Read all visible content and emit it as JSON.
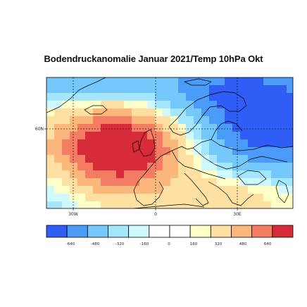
{
  "title": "Bodendruckanomalie Januar 2021/Temp 10hPa Okt",
  "map": {
    "lon_labels": [
      "30W",
      "0",
      "30E"
    ],
    "lat_labels": [
      "60N"
    ]
  },
  "colorbar": {
    "levels": [
      "-640",
      "-480",
      "-320",
      "-160",
      "0",
      "160",
      "320",
      "480",
      "640"
    ],
    "colors": [
      "#2f5df5",
      "#4a9cf8",
      "#74c8fb",
      "#a4e6fb",
      "#d0f8ff",
      "#ffffff",
      "#ffffff",
      "#ffffc8",
      "#fde0a2",
      "#fbb77c",
      "#f47c62",
      "#d82b3a"
    ]
  },
  "anomaly_colors": {
    "neg4": "#2f5df5",
    "neg3": "#4a9cf8",
    "neg2": "#74c8fb",
    "neg1": "#a4e6fb",
    "neg0": "#d0f8ff",
    "pos0": "#ffffc8",
    "pos1": "#fde0a2",
    "pos2": "#fbb77c",
    "pos3": "#f47c62",
    "pos4": "#d82b3a"
  }
}
